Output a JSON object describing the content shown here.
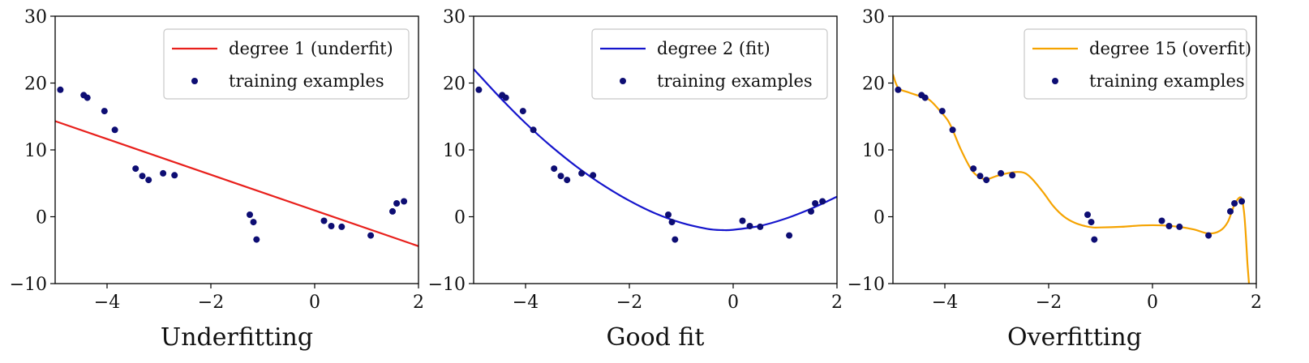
{
  "chart_data": [
    {
      "type": "line",
      "title": "Underfitting",
      "xlim": [
        -5,
        2
      ],
      "ylim": [
        -10,
        30
      ],
      "xticks": [
        "−4",
        "−2",
        "0",
        "2"
      ],
      "xtick_values": [
        -4,
        -2,
        0,
        2
      ],
      "yticks": [
        "−10",
        "0",
        "10",
        "20",
        "30"
      ],
      "ytick_values": [
        -10,
        0,
        10,
        20,
        30
      ],
      "legend_position": "top-right",
      "series": [
        {
          "name": "degree 1 (underfit)",
          "kind": "line",
          "color": "#e8201c",
          "degree": 1,
          "x": [
            -5,
            2
          ],
          "y": [
            14.3,
            -4.4
          ]
        },
        {
          "name": "training examples",
          "kind": "scatter",
          "color": "#0d0d73",
          "x": [
            -4.9,
            -4.45,
            -4.38,
            -4.05,
            -3.85,
            -3.45,
            -3.32,
            -3.2,
            -2.92,
            -2.7,
            -1.25,
            -1.18,
            -1.12,
            0.18,
            0.32,
            0.52,
            1.08,
            1.5,
            1.58,
            1.72
          ],
          "y": [
            19.0,
            18.2,
            17.8,
            15.8,
            13.0,
            7.2,
            6.1,
            5.5,
            6.5,
            6.2,
            0.3,
            -0.8,
            -3.4,
            -0.6,
            -1.4,
            -1.5,
            -2.8,
            0.8,
            2.0,
            2.3
          ]
        }
      ]
    },
    {
      "type": "line",
      "title": "Good fit",
      "xlim": [
        -5,
        2
      ],
      "ylim": [
        -10,
        30
      ],
      "xticks": [
        "−4",
        "−2",
        "0",
        "2"
      ],
      "xtick_values": [
        -4,
        -2,
        0,
        2
      ],
      "yticks": [
        "−10",
        "0",
        "10",
        "20",
        "30"
      ],
      "ytick_values": [
        -10,
        0,
        10,
        20,
        30
      ],
      "legend_position": "top-right",
      "series": [
        {
          "name": "degree 2 (fit)",
          "kind": "line",
          "color": "#1515cc",
          "degree": 2,
          "x": [
            -5.0,
            -4.5,
            -4.0,
            -3.5,
            -3.0,
            -2.5,
            -2.0,
            -1.5,
            -1.0,
            -0.5,
            -0.2,
            0.0,
            0.5,
            1.0,
            1.5,
            2.0
          ],
          "y": [
            22.1,
            17.9,
            14.0,
            10.5,
            7.4,
            4.7,
            2.4,
            0.5,
            -0.9,
            -1.8,
            -2.0,
            -1.95,
            -1.4,
            -0.3,
            1.2,
            3.0
          ]
        },
        {
          "name": "training examples",
          "kind": "scatter",
          "color": "#0d0d73",
          "x": [
            -4.9,
            -4.45,
            -4.38,
            -4.05,
            -3.85,
            -3.45,
            -3.32,
            -3.2,
            -2.92,
            -2.7,
            -1.25,
            -1.18,
            -1.12,
            0.18,
            0.32,
            0.52,
            1.08,
            1.5,
            1.58,
            1.72
          ],
          "y": [
            19.0,
            18.2,
            17.8,
            15.8,
            13.0,
            7.2,
            6.1,
            5.5,
            6.5,
            6.2,
            0.3,
            -0.8,
            -3.4,
            -0.6,
            -1.4,
            -1.5,
            -2.8,
            0.8,
            2.0,
            2.3
          ]
        }
      ]
    },
    {
      "type": "line",
      "title": "Overfitting",
      "xlim": [
        -5,
        2
      ],
      "ylim": [
        -10,
        30
      ],
      "xticks": [
        "−4",
        "−2",
        "0",
        "2"
      ],
      "xtick_values": [
        -4,
        -2,
        0,
        2
      ],
      "yticks": [
        "−10",
        "0",
        "10",
        "20",
        "30"
      ],
      "ytick_values": [
        -10,
        0,
        10,
        20,
        30
      ],
      "legend_position": "top-right",
      "series": [
        {
          "name": "degree 15 (overfit)",
          "kind": "line",
          "color": "#f5a300",
          "degree": 15,
          "x": [
            -5.0,
            -4.9,
            -4.7,
            -4.5,
            -4.3,
            -4.1,
            -3.95,
            -3.85,
            -3.7,
            -3.5,
            -3.35,
            -3.2,
            -3.0,
            -2.8,
            -2.6,
            -2.45,
            -2.3,
            -2.1,
            -1.9,
            -1.7,
            -1.5,
            -1.3,
            -1.15,
            -1.0,
            -0.6,
            -0.2,
            0.2,
            0.5,
            0.8,
            1.08,
            1.3,
            1.45,
            1.58,
            1.7,
            1.76,
            1.8,
            1.83,
            1.86
          ],
          "y": [
            21.3,
            19.3,
            18.6,
            18.1,
            17.5,
            15.9,
            14.5,
            13.0,
            10.2,
            7.2,
            6.0,
            5.6,
            6.1,
            6.5,
            6.7,
            6.5,
            5.5,
            3.6,
            1.5,
            0.0,
            -0.9,
            -1.4,
            -1.6,
            -1.6,
            -1.5,
            -1.3,
            -1.3,
            -1.5,
            -1.9,
            -2.5,
            -2.1,
            -0.8,
            1.8,
            2.9,
            1.0,
            -3.0,
            -7.0,
            -10.0
          ]
        },
        {
          "name": "training examples",
          "kind": "scatter",
          "color": "#0d0d73",
          "x": [
            -4.9,
            -4.45,
            -4.38,
            -4.05,
            -3.85,
            -3.45,
            -3.32,
            -3.2,
            -2.92,
            -2.7,
            -1.25,
            -1.18,
            -1.12,
            0.18,
            0.32,
            0.52,
            1.08,
            1.5,
            1.58,
            1.72
          ],
          "y": [
            19.0,
            18.2,
            17.8,
            15.8,
            13.0,
            7.2,
            6.1,
            5.5,
            6.5,
            6.2,
            0.3,
            -0.8,
            -3.4,
            -0.6,
            -1.4,
            -1.5,
            -2.8,
            0.8,
            2.0,
            2.3
          ]
        }
      ]
    }
  ]
}
